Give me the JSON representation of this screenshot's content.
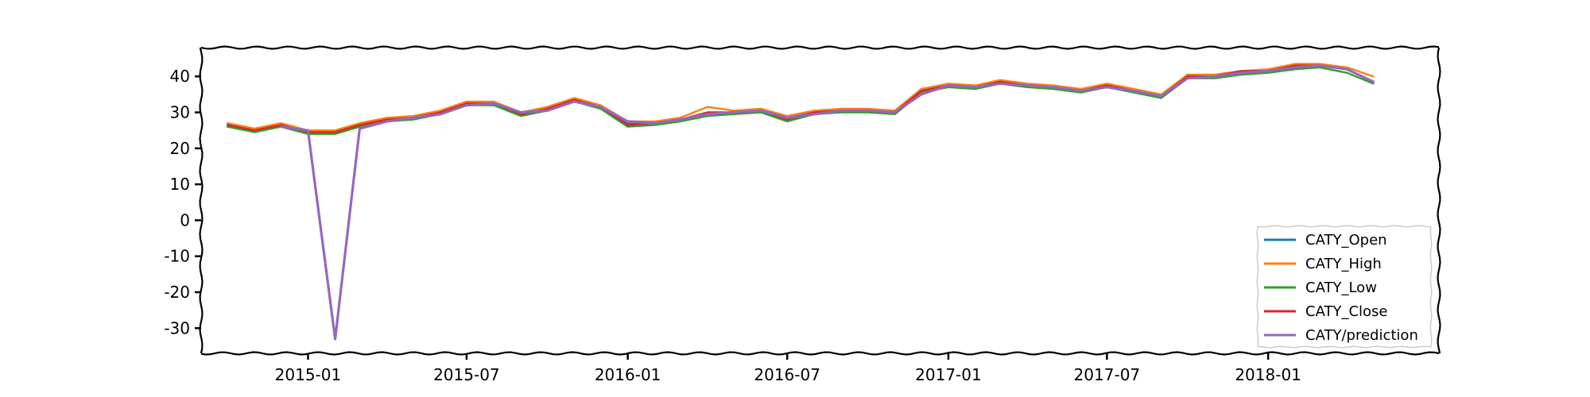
{
  "chart_data": {
    "type": "line",
    "title": "",
    "xlabel": "",
    "ylabel": "",
    "xlim": [
      "2014-09-01",
      "2018-07-15"
    ],
    "ylim": [
      -37,
      48
    ],
    "grid": false,
    "legend_position": "lower-right",
    "x_ticks": [
      "2015-01",
      "2015-07",
      "2016-01",
      "2016-07",
      "2017-01",
      "2017-07",
      "2018-01"
    ],
    "y_ticks": [
      40,
      30,
      20,
      10,
      0,
      -10,
      -20,
      -30
    ],
    "x": [
      "2014-10-01",
      "2014-11-01",
      "2014-12-01",
      "2015-01-01",
      "2015-02-01",
      "2015-03-01",
      "2015-04-01",
      "2015-05-01",
      "2015-06-01",
      "2015-07-01",
      "2015-08-01",
      "2015-09-01",
      "2015-10-01",
      "2015-11-01",
      "2015-12-01",
      "2016-01-01",
      "2016-02-01",
      "2016-03-01",
      "2016-04-01",
      "2016-05-01",
      "2016-06-01",
      "2016-07-01",
      "2016-08-01",
      "2016-09-01",
      "2016-10-01",
      "2016-11-01",
      "2016-12-01",
      "2017-01-01",
      "2017-02-01",
      "2017-03-01",
      "2017-04-01",
      "2017-05-01",
      "2017-06-01",
      "2017-07-01",
      "2017-08-01",
      "2017-09-01",
      "2017-10-01",
      "2017-11-01",
      "2017-12-01",
      "2018-01-01",
      "2018-02-01",
      "2018-03-01",
      "2018-04-01",
      "2018-05-01"
    ],
    "series": [
      {
        "name": "CATY_Open",
        "color": "#1f77b4",
        "values": [
          26.5,
          25.0,
          26.5,
          24.5,
          24.5,
          26.5,
          28.0,
          28.5,
          30.0,
          32.5,
          32.5,
          29.5,
          31.0,
          33.5,
          31.5,
          27.0,
          27.0,
          28.0,
          29.5,
          30.0,
          30.5,
          28.5,
          30.0,
          30.5,
          30.5,
          30.0,
          36.0,
          37.5,
          37.0,
          38.5,
          37.5,
          37.0,
          36.0,
          37.5,
          36.0,
          34.5,
          40.0,
          40.0,
          41.0,
          41.5,
          42.5,
          43.0,
          42.0,
          38.5
        ]
      },
      {
        "name": "CATY_High",
        "color": "#ff7f0e",
        "values": [
          27.0,
          25.5,
          27.0,
          25.0,
          25.0,
          27.0,
          28.5,
          29.0,
          30.5,
          33.0,
          33.0,
          30.0,
          31.5,
          34.0,
          32.0,
          27.5,
          27.5,
          28.5,
          31.5,
          30.5,
          31.0,
          29.0,
          30.5,
          31.0,
          31.0,
          30.5,
          36.5,
          38.0,
          37.5,
          39.0,
          38.0,
          37.5,
          36.5,
          38.0,
          36.5,
          35.0,
          40.5,
          40.5,
          41.5,
          42.0,
          43.5,
          43.5,
          42.5,
          40.0
        ]
      },
      {
        "name": "CATY_Low",
        "color": "#2ca02c",
        "values": [
          26.0,
          24.5,
          26.0,
          24.0,
          24.0,
          26.0,
          27.5,
          28.0,
          29.5,
          32.0,
          32.0,
          29.0,
          30.5,
          33.0,
          31.0,
          26.0,
          26.5,
          27.5,
          29.0,
          29.5,
          30.0,
          27.5,
          29.5,
          30.0,
          30.0,
          29.5,
          35.5,
          37.0,
          36.5,
          38.0,
          37.0,
          36.5,
          35.5,
          37.0,
          35.5,
          34.0,
          39.5,
          39.5,
          40.5,
          41.0,
          42.0,
          42.5,
          41.0,
          38.0
        ]
      },
      {
        "name": "CATY_Close",
        "color": "#d62728",
        "values": [
          26.5,
          25.0,
          26.5,
          24.5,
          24.5,
          26.5,
          28.0,
          28.5,
          30.0,
          32.5,
          32.5,
          29.5,
          31.0,
          33.5,
          31.5,
          26.5,
          27.0,
          28.0,
          30.0,
          30.0,
          30.5,
          28.0,
          30.0,
          30.5,
          30.5,
          30.0,
          36.0,
          37.5,
          37.0,
          38.5,
          37.5,
          37.0,
          36.0,
          37.5,
          36.0,
          34.5,
          40.0,
          40.0,
          41.5,
          41.5,
          43.0,
          43.0,
          42.0,
          38.5
        ]
      },
      {
        "name": "CATY/prediction",
        "color": "#9467bd",
        "values": [
          null,
          null,
          26.0,
          25.0,
          -33.0,
          25.5,
          27.5,
          28.5,
          29.5,
          32.0,
          32.5,
          30.0,
          30.5,
          33.0,
          31.5,
          27.5,
          27.0,
          28.0,
          29.5,
          30.0,
          30.5,
          28.5,
          29.5,
          30.5,
          30.5,
          30.0,
          35.0,
          37.5,
          37.0,
          38.0,
          37.5,
          37.0,
          36.0,
          37.0,
          36.0,
          34.5,
          39.5,
          40.0,
          41.0,
          41.5,
          42.5,
          43.0,
          42.0,
          38.5
        ]
      }
    ]
  }
}
